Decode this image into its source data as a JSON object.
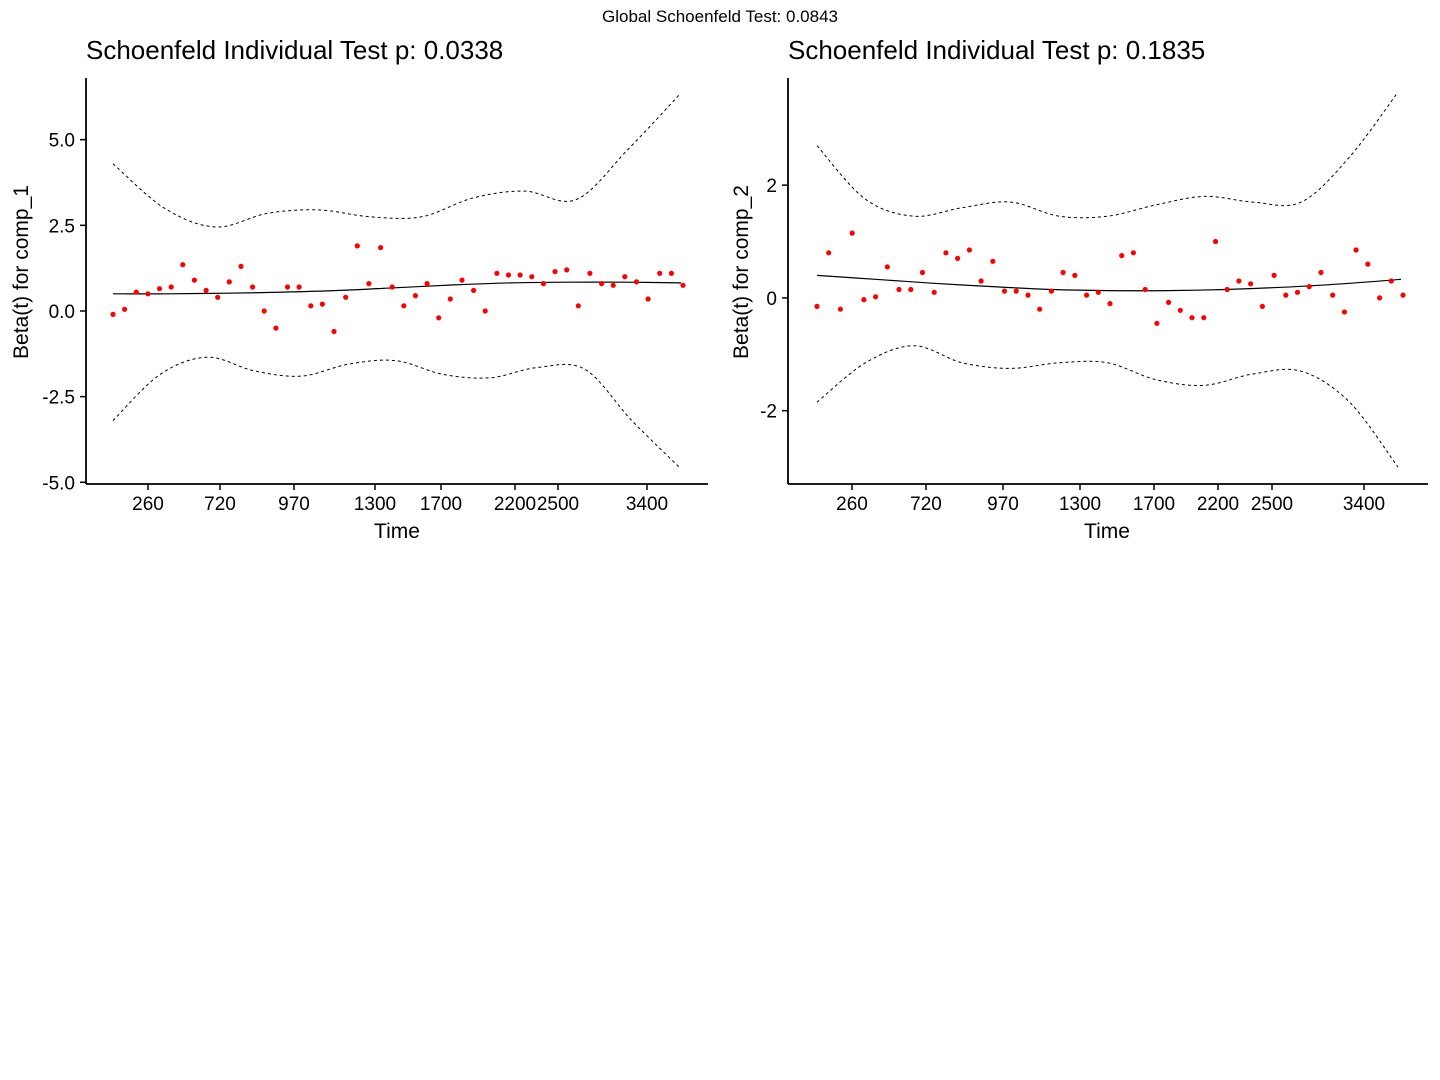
{
  "suptitle": "Global Schoenfeld Test: 0.0843",
  "chart_data": [
    {
      "type": "scatter",
      "title": "Schoenfeld Individual Test p: 0.0338",
      "xlabel": "Time",
      "ylabel": "Beta(t) for comp_1",
      "x_scale": "transformed (km)",
      "x_ticks": [
        "260",
        "720",
        "970",
        "1300",
        "1700",
        "2200",
        "2500",
        "3400"
      ],
      "y_ticks": [
        -5.0,
        -2.5,
        0.0,
        2.5,
        5.0
      ],
      "y_tick_labels": [
        "-5.0",
        "-2.5",
        "0.0",
        "2.5",
        "5.0"
      ],
      "ylim": [
        -5.05,
        6.8
      ],
      "grid": false,
      "points_color": "#ff0000",
      "line_color": "#000000",
      "points_y": [
        -0.1,
        0.05,
        0.55,
        0.5,
        0.65,
        0.7,
        1.35,
        0.9,
        0.6,
        0.4,
        0.85,
        1.3,
        0.7,
        0.0,
        -0.5,
        0.7,
        0.7,
        0.15,
        0.2,
        -0.6,
        0.4,
        1.9,
        0.8,
        1.85,
        0.7,
        0.15,
        0.45,
        0.8,
        -0.2,
        0.35,
        0.9,
        0.6,
        0.0,
        1.1,
        1.05,
        1.05,
        1.0,
        0.8,
        1.15,
        1.2,
        0.15,
        1.1,
        0.8,
        0.75,
        1.0,
        0.85,
        0.35,
        1.1,
        1.1,
        0.75
      ],
      "fit_y": [
        0.5,
        0.5,
        0.52,
        0.55,
        0.6,
        0.68,
        0.76,
        0.82,
        0.84,
        0.84,
        0.82
      ],
      "upper_band_y": [
        4.3,
        3.0,
        2.45,
        2.85,
        2.95,
        2.75,
        2.75,
        3.3,
        3.5,
        3.25,
        4.7,
        6.3
      ],
      "lower_band_y": [
        -3.2,
        -1.85,
        -1.35,
        -1.75,
        -1.9,
        -1.55,
        -1.45,
        -1.85,
        -1.95,
        -1.65,
        -1.7,
        -3.2,
        -4.55
      ]
    },
    {
      "type": "scatter",
      "title": "Schoenfeld Individual Test p: 0.1835",
      "xlabel": "Time",
      "ylabel": "Beta(t) for comp_2",
      "x_scale": "transformed (km)",
      "x_ticks": [
        "260",
        "720",
        "970",
        "1300",
        "1700",
        "2200",
        "2500",
        "3400"
      ],
      "y_ticks": [
        -2,
        0,
        2
      ],
      "y_tick_labels": [
        "-2",
        "0",
        "2"
      ],
      "ylim": [
        -3.3,
        3.9
      ],
      "grid": false,
      "points_color": "#ff0000",
      "line_color": "#000000",
      "points_y": [
        -0.15,
        0.8,
        -0.2,
        1.15,
        -0.03,
        0.02,
        0.55,
        0.15,
        0.15,
        0.45,
        0.1,
        0.8,
        0.7,
        0.85,
        0.3,
        0.65,
        0.12,
        0.12,
        0.05,
        -0.2,
        0.12,
        0.45,
        0.4,
        0.05,
        0.1,
        -0.1,
        0.75,
        0.8,
        0.15,
        -0.45,
        -0.08,
        -0.22,
        -0.35,
        -0.35,
        1.0,
        0.15,
        0.3,
        0.25,
        -0.15,
        0.4,
        0.05,
        0.1,
        0.2,
        0.45,
        0.05,
        -0.25,
        0.85,
        0.6,
        0.0,
        0.3,
        0.05
      ],
      "fit_y": [
        0.4,
        0.33,
        0.26,
        0.2,
        0.15,
        0.13,
        0.13,
        0.15,
        0.19,
        0.25,
        0.33
      ],
      "upper_band_y": [
        2.7,
        1.75,
        1.45,
        1.6,
        1.7,
        1.45,
        1.45,
        1.65,
        1.8,
        1.7,
        1.7,
        2.5,
        3.65
      ],
      "lower_band_y": [
        -1.85,
        -1.15,
        -0.85,
        -1.15,
        -1.25,
        -1.15,
        -1.15,
        -1.45,
        -1.55,
        -1.35,
        -1.3,
        -1.85,
        -3.0
      ]
    }
  ]
}
